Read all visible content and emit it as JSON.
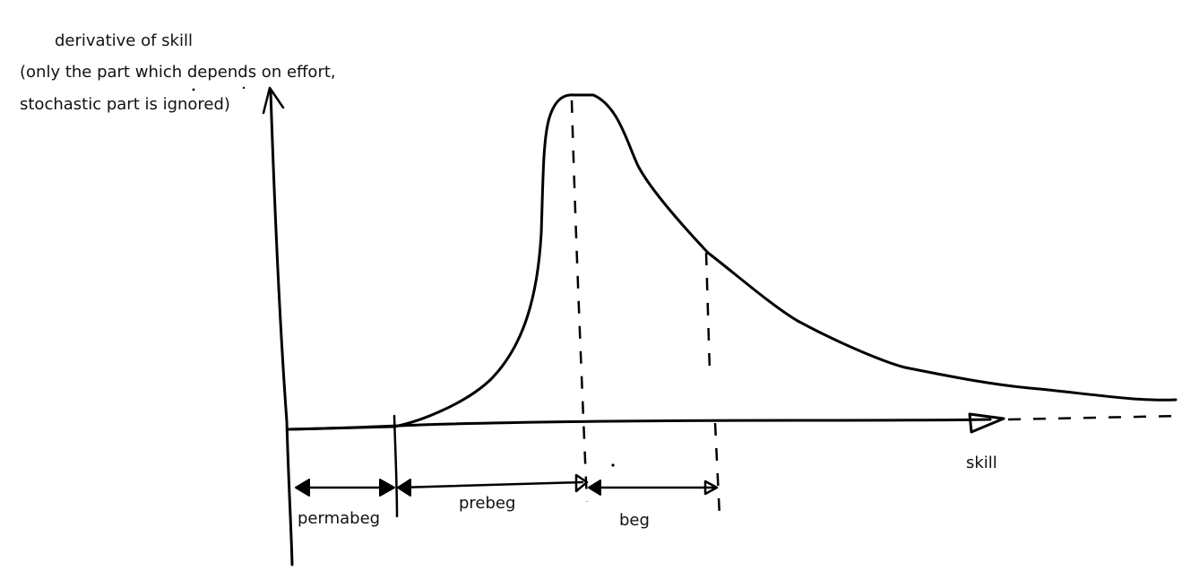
{
  "labels": {
    "y_axis_line1": "derivative of skill",
    "y_axis_line2": "(only the part which depends on effort,",
    "y_axis_line3": "stochastic part is ignored)",
    "x_axis": "skill",
    "region_permabeg": "permabeg",
    "region_prebeg": "prebeg",
    "region_beg": "beg"
  }
}
